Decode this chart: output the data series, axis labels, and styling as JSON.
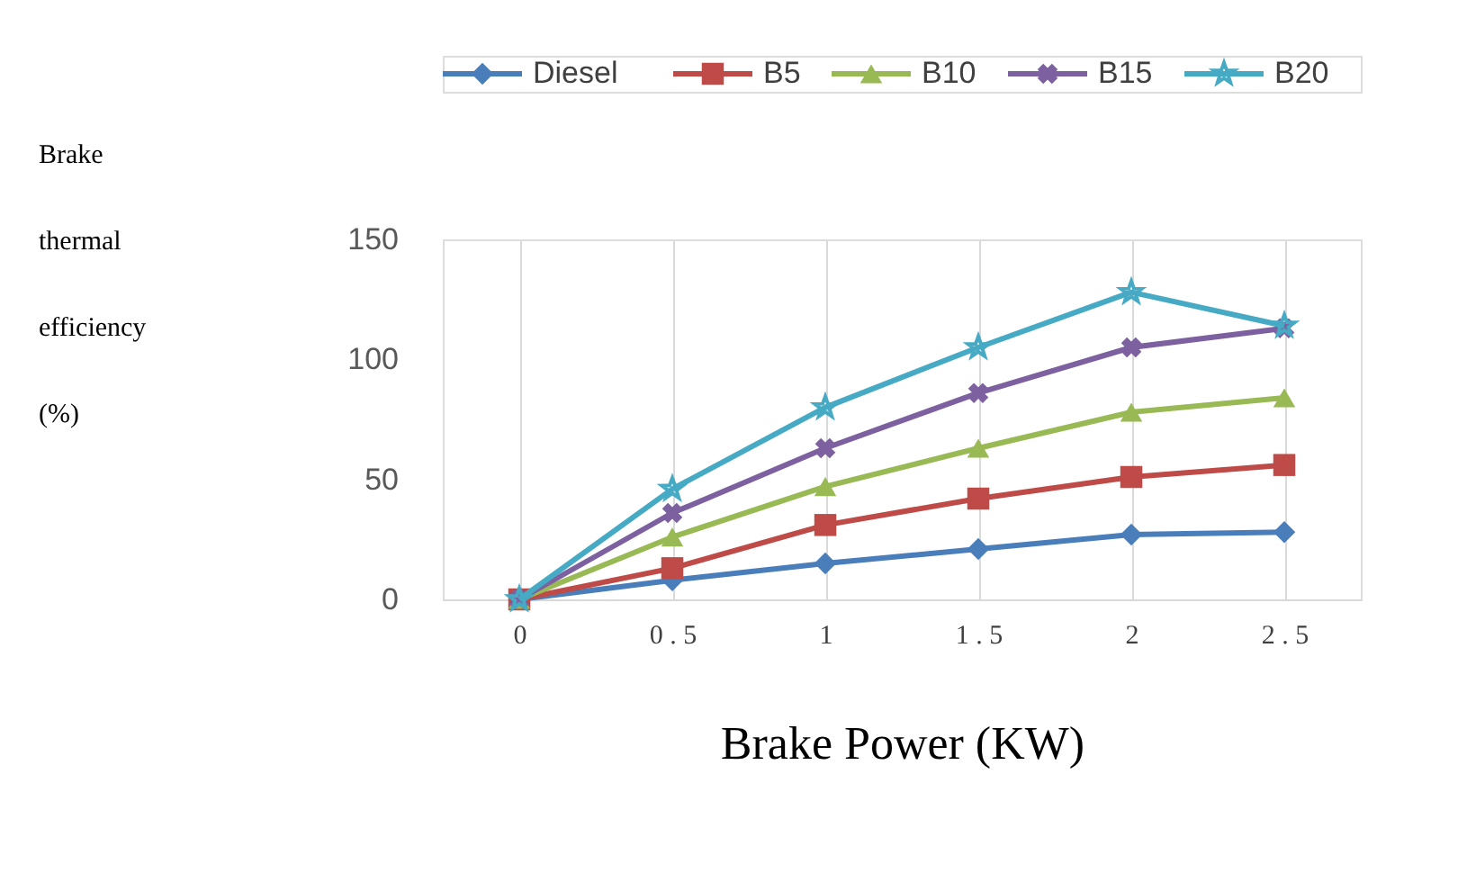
{
  "chart_data": {
    "type": "line",
    "xlabel": "Brake Power (KW)",
    "ylabel": "Brake thermal efficiency (%)",
    "categories": [
      "0",
      "0 . 5",
      "1",
      "1 . 5",
      "2",
      "2 . 5"
    ],
    "series": [
      {
        "name": "Diesel",
        "color": "#4a7ebb",
        "marker": "diamond",
        "values": [
          0,
          8,
          15,
          21,
          27,
          28
        ]
      },
      {
        "name": "B5",
        "color": "#be4b48",
        "marker": "square",
        "values": [
          0,
          13,
          31,
          42,
          51,
          56
        ]
      },
      {
        "name": "B10",
        "color": "#98b954",
        "marker": "triangle",
        "values": [
          0,
          26,
          47,
          63,
          78,
          84
        ]
      },
      {
        "name": "B15",
        "color": "#7d60a0",
        "marker": "cross",
        "values": [
          0,
          36,
          63,
          86,
          105,
          113
        ]
      },
      {
        "name": "B20",
        "color": "#46aac5",
        "marker": "star",
        "values": [
          0,
          46,
          80,
          105,
          128,
          114
        ]
      }
    ],
    "ylim": [
      0,
      150
    ],
    "yticks": [
      0,
      50,
      100,
      150
    ],
    "grid": "x",
    "legend": "top"
  }
}
